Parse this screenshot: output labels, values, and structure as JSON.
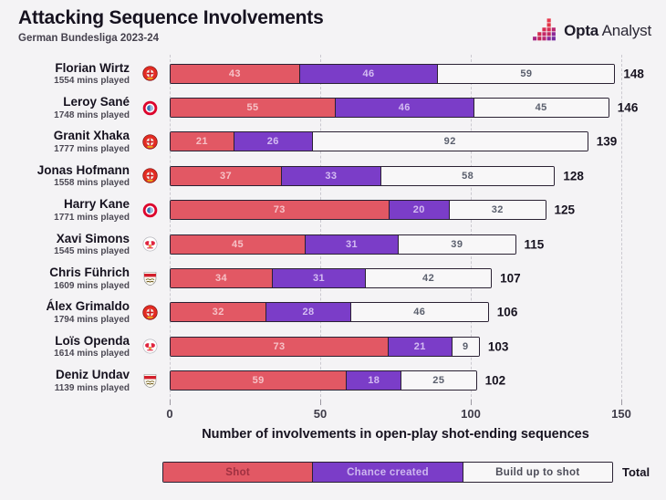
{
  "header": {
    "title": "Attacking Sequence Involvements",
    "subtitle": "German Bundesliga 2023-24"
  },
  "logo": {
    "brand_bold": "Opta",
    "brand_light": "Analyst"
  },
  "chart_data": {
    "type": "bar",
    "orientation": "horizontal",
    "stacked": true,
    "xlim": [
      0,
      150
    ],
    "x_ticks": [
      0,
      50,
      100,
      150
    ],
    "grid": "dashed-vertical",
    "xlabel": "Number of involvements in open-play shot-ending sequences",
    "series": [
      "Shot",
      "Chance created",
      "Build up to shot"
    ],
    "colors": {
      "shot": "#e25864",
      "chance_created": "#7b3dc8",
      "build_up_to_shot": "#f8f7f8",
      "bar_border": "#2a2133",
      "background": "#f4f3f5"
    },
    "rows": [
      {
        "player": "Florian Wirtz",
        "mins": "1554 mins played",
        "club": "leverkusen",
        "values": [
          43,
          46,
          59
        ],
        "total": 148
      },
      {
        "player": "Leroy Sané",
        "mins": "1748 mins played",
        "club": "bayern",
        "values": [
          55,
          46,
          45
        ],
        "total": 146
      },
      {
        "player": "Granit Xhaka",
        "mins": "1777 mins played",
        "club": "leverkusen",
        "values": [
          21,
          26,
          92
        ],
        "total": 139
      },
      {
        "player": "Jonas Hofmann",
        "mins": "1558 mins played",
        "club": "leverkusen",
        "values": [
          37,
          33,
          58
        ],
        "total": 128
      },
      {
        "player": "Harry Kane",
        "mins": "1771 mins played",
        "club": "bayern",
        "values": [
          73,
          20,
          32
        ],
        "total": 125
      },
      {
        "player": "Xavi Simons",
        "mins": "1545 mins played",
        "club": "leipzig",
        "values": [
          45,
          31,
          39
        ],
        "total": 115
      },
      {
        "player": "Chris Führich",
        "mins": "1609 mins played",
        "club": "stuttgart",
        "values": [
          34,
          31,
          42
        ],
        "total": 107
      },
      {
        "player": "Álex Grimaldo",
        "mins": "1794 mins played",
        "club": "leverkusen",
        "values": [
          32,
          28,
          46
        ],
        "total": 106
      },
      {
        "player": "Loïs Openda",
        "mins": "1614 mins played",
        "club": "leipzig",
        "values": [
          73,
          21,
          9
        ],
        "total": 103
      },
      {
        "player": "Deniz Undav",
        "mins": "1139 mins played",
        "club": "stuttgart",
        "values": [
          59,
          18,
          25
        ],
        "total": 102
      }
    ],
    "legend": {
      "shot": "Shot",
      "chance": "Chance created",
      "build": "Build up to shot",
      "total": "Total"
    }
  }
}
